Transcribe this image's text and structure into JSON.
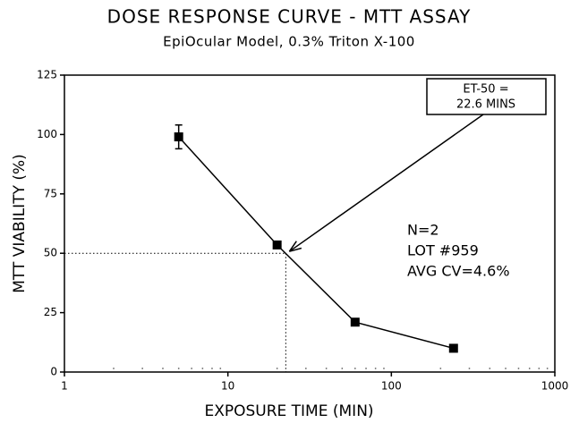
{
  "chart_data": {
    "type": "line",
    "title": "DOSE RESPONSE CURVE - MTT ASSAY",
    "subtitle": "EpiOcular Model, 0.3% Triton X-100",
    "xlabel": "EXPOSURE TIME (MIN)",
    "ylabel": "MTT VIABILITY (%)",
    "xscale": "log",
    "xlim": [
      1,
      1000
    ],
    "xticks": [
      1,
      10,
      100,
      1000
    ],
    "xminorticks": [
      2,
      3,
      4,
      5,
      6,
      7,
      8,
      9,
      20,
      30,
      40,
      50,
      60,
      70,
      80,
      90,
      200,
      300,
      400,
      500,
      600,
      700,
      800,
      900
    ],
    "ylim": [
      0,
      125
    ],
    "yticks": [
      0,
      25,
      50,
      75,
      100,
      125
    ],
    "series": [
      {
        "color": "#000000",
        "x": [
          5,
          20,
          60,
          240
        ],
        "values": [
          99,
          53.5,
          21,
          10
        ],
        "errors": [
          5,
          null,
          null,
          null
        ]
      }
    ],
    "reference": {
      "x": 22.6,
      "y": 50
    },
    "callout": [
      "ET-50 =",
      "22.6 MINS"
    ],
    "notes": [
      "N=2",
      "LOT #959",
      "AVG CV=4.6%"
    ]
  }
}
